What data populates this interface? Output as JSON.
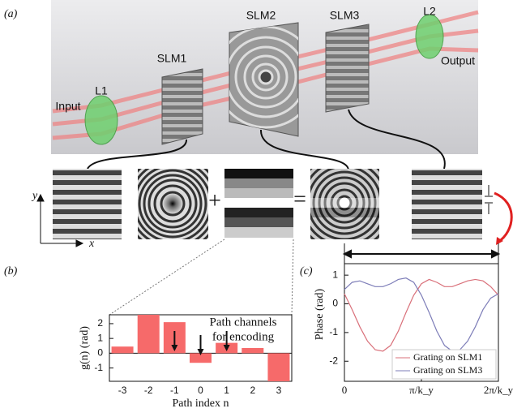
{
  "panels": {
    "a": "(a)",
    "b": "(b)",
    "c": "(c)"
  },
  "diagram": {
    "slm1": "SLM1",
    "slm2": "SLM2",
    "slm3": "SLM3",
    "l1": "L1",
    "l2": "L2",
    "input": "Input",
    "output": "Output",
    "axis_x": "x",
    "axis_y": "y",
    "plus": "+",
    "equals": "="
  },
  "chart_data": [
    {
      "type": "bar",
      "x_label": "Path index n",
      "y_label": "g(n) (rad)",
      "annotation": [
        "Path channels",
        "for encoding"
      ],
      "categories": [
        "-3",
        "-2",
        "-1",
        "0",
        "1",
        "2",
        "3"
      ],
      "values": [
        0.45,
        2.6,
        2.1,
        -0.65,
        0.7,
        0.35,
        -1.9
      ],
      "color": "#f66a6a",
      "ylim": [
        -1.9,
        2.6
      ],
      "yticks": [
        -1,
        0,
        1,
        2
      ]
    },
    {
      "type": "line",
      "y_label": "Phase (rad)",
      "legend": "lower right",
      "x": [
        0,
        0.1,
        0.2,
        0.3,
        0.4,
        0.5,
        0.6,
        0.7,
        0.8,
        0.9,
        1.0,
        1.1,
        1.2,
        1.3,
        1.4,
        1.5,
        1.6,
        1.7,
        1.8,
        1.9,
        2.0
      ],
      "series": [
        {
          "name": "Grating on SLM1",
          "color": "#d9707a",
          "values": [
            0.35,
            -0.2,
            -0.8,
            -1.3,
            -1.6,
            -1.65,
            -1.45,
            -0.95,
            -0.3,
            0.3,
            0.7,
            0.85,
            0.75,
            0.6,
            0.6,
            0.7,
            0.8,
            0.85,
            0.8,
            0.6,
            0.3
          ]
        },
        {
          "name": "Grating on SLM3",
          "color": "#7d7db8",
          "values": [
            0.5,
            0.75,
            0.8,
            0.7,
            0.6,
            0.6,
            0.7,
            0.85,
            0.9,
            0.75,
            0.3,
            -0.3,
            -0.95,
            -1.45,
            -1.65,
            -1.6,
            -1.3,
            -0.8,
            -0.2,
            0.2,
            0.35
          ]
        }
      ],
      "xlim": [
        0,
        2
      ],
      "xticks": [
        0,
        {
          "value": 1,
          "label": "π/k_y"
        },
        {
          "value": 2,
          "label": "2π/k_y"
        }
      ],
      "ylim": [
        -2.7,
        1.4
      ],
      "yticks": [
        -2,
        -1,
        0,
        1
      ]
    }
  ]
}
